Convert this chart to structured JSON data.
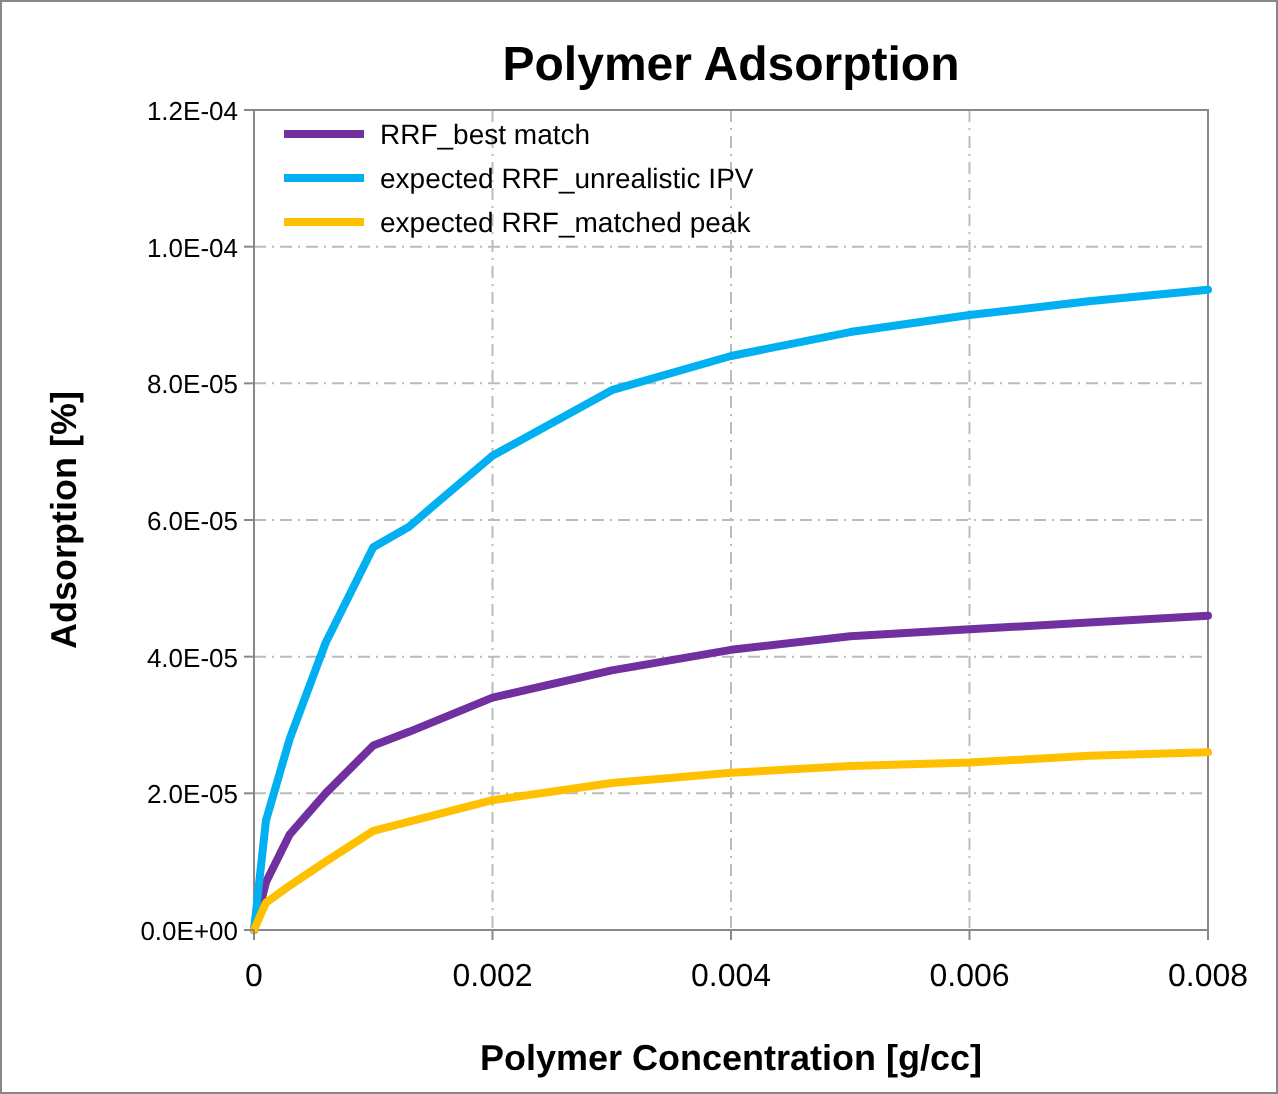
{
  "chart_data": {
    "type": "line",
    "title": "Polymer Adsorption",
    "xlabel": "Polymer Concentration [g/cc]",
    "ylabel": "Adsorption [%]",
    "xlim": [
      0,
      0.008
    ],
    "xticks": [
      0,
      0.002,
      0.004,
      0.006,
      0.008
    ],
    "ylim": [
      0,
      0.00012
    ],
    "yticks": [
      {
        "value": 0,
        "label": "0.0E+00"
      },
      {
        "value": 2e-05,
        "label": "2.0E-05"
      },
      {
        "value": 4e-05,
        "label": "4.0E-05"
      },
      {
        "value": 6e-05,
        "label": "6.0E-05"
      },
      {
        "value": 8e-05,
        "label": "8.0E-05"
      },
      {
        "value": 0.0001,
        "label": "1.0E-04"
      },
      {
        "value": 0.00012,
        "label": "1.2E-04"
      }
    ],
    "grid": true,
    "legend": "top left",
    "marker": "none",
    "line_style": "solid",
    "series": [
      {
        "name": "RRF_best match",
        "color": "#7030a0",
        "x": [
          0,
          0.0001,
          0.0003,
          0.0006,
          0.001,
          0.0013,
          0.002,
          0.003,
          0.004,
          0.005,
          0.006,
          0.007,
          0.008
        ],
        "values": [
          0,
          7e-06,
          1.4e-05,
          2e-05,
          2.7e-05,
          2.9e-05,
          3.4e-05,
          3.8e-05,
          4.1e-05,
          4.3e-05,
          4.4e-05,
          4.5e-05,
          4.6e-05
        ]
      },
      {
        "name": "expected RRF_unrealistic IPV",
        "color": "#00b0f0",
        "x": [
          0,
          0.0001,
          0.0003,
          0.0006,
          0.001,
          0.0013,
          0.0015,
          0.002,
          0.003,
          0.004,
          0.005,
          0.006,
          0.007,
          0.008
        ],
        "values": [
          0,
          1.6e-05,
          2.8e-05,
          4.2e-05,
          5.6e-05,
          5.9e-05,
          6.2e-05,
          6.94e-05,
          7.9e-05,
          8.4e-05,
          8.75e-05,
          9e-05,
          9.2e-05,
          9.37e-05
        ]
      },
      {
        "name": "expected RRF_matched peak",
        "color": "#ffc000",
        "x": [
          0,
          0.0001,
          0.0003,
          0.0006,
          0.001,
          0.002,
          0.003,
          0.004,
          0.005,
          0.006,
          0.007,
          0.008
        ],
        "values": [
          0,
          4e-06,
          6.5e-06,
          1e-05,
          1.45e-05,
          1.9e-05,
          2.15e-05,
          2.3e-05,
          2.4e-05,
          2.45e-05,
          2.55e-05,
          2.6e-05
        ]
      }
    ]
  }
}
